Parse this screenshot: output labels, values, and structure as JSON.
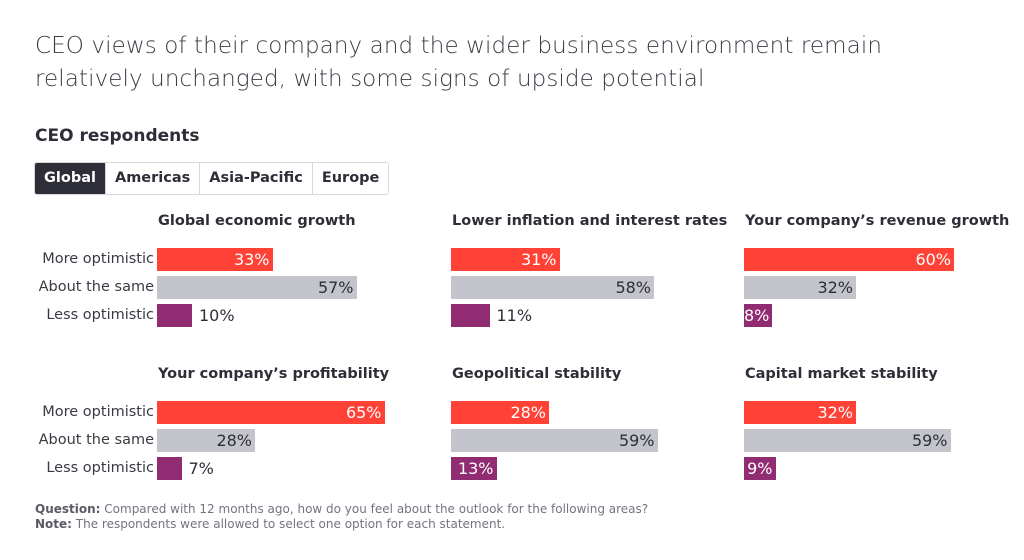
{
  "title_line1": "CEO views of their company and the wider business environment remain",
  "title_line2": "relatively unchanged, with some signs of upside potential",
  "subhead": "CEO respondents",
  "tabs": [
    {
      "label": "Global",
      "active": true
    },
    {
      "label": "Americas",
      "active": false
    },
    {
      "label": "Asia-Pacific",
      "active": false
    },
    {
      "label": "Europe",
      "active": false
    }
  ],
  "colors": {
    "more": "#ff4136",
    "same": "#c4c4cd",
    "less": "#912b72"
  },
  "chart_data": {
    "type": "bar",
    "orientation": "horizontal",
    "categories": [
      "More optimistic",
      "About the same",
      "Less optimistic"
    ],
    "unit": "%",
    "panels": [
      {
        "title": "Global economic growth",
        "values": [
          33,
          57,
          10
        ]
      },
      {
        "title": "Lower inflation and interest rates",
        "values": [
          31,
          58,
          11
        ]
      },
      {
        "title": "Your company’s revenue growth",
        "values": [
          60,
          32,
          8
        ]
      },
      {
        "title": "Your company’s profitability",
        "values": [
          65,
          28,
          7
        ]
      },
      {
        "title": "Geopolitical stability",
        "values": [
          28,
          59,
          13
        ]
      },
      {
        "title": "Capital market stability",
        "values": [
          32,
          59,
          9
        ]
      }
    ],
    "labels_inside": [
      [
        true,
        true,
        false
      ],
      [
        true,
        true,
        false
      ],
      [
        true,
        true,
        true
      ],
      [
        true,
        true,
        false
      ],
      [
        true,
        true,
        true
      ],
      [
        true,
        true,
        true
      ]
    ]
  },
  "footer": {
    "question_label": "Question:",
    "question_text": " Compared with 12 months ago, how do you feel about the outlook for the following areas?",
    "note_label": "Note:",
    "note_text": " The respondents were allowed to select one option for each statement."
  }
}
